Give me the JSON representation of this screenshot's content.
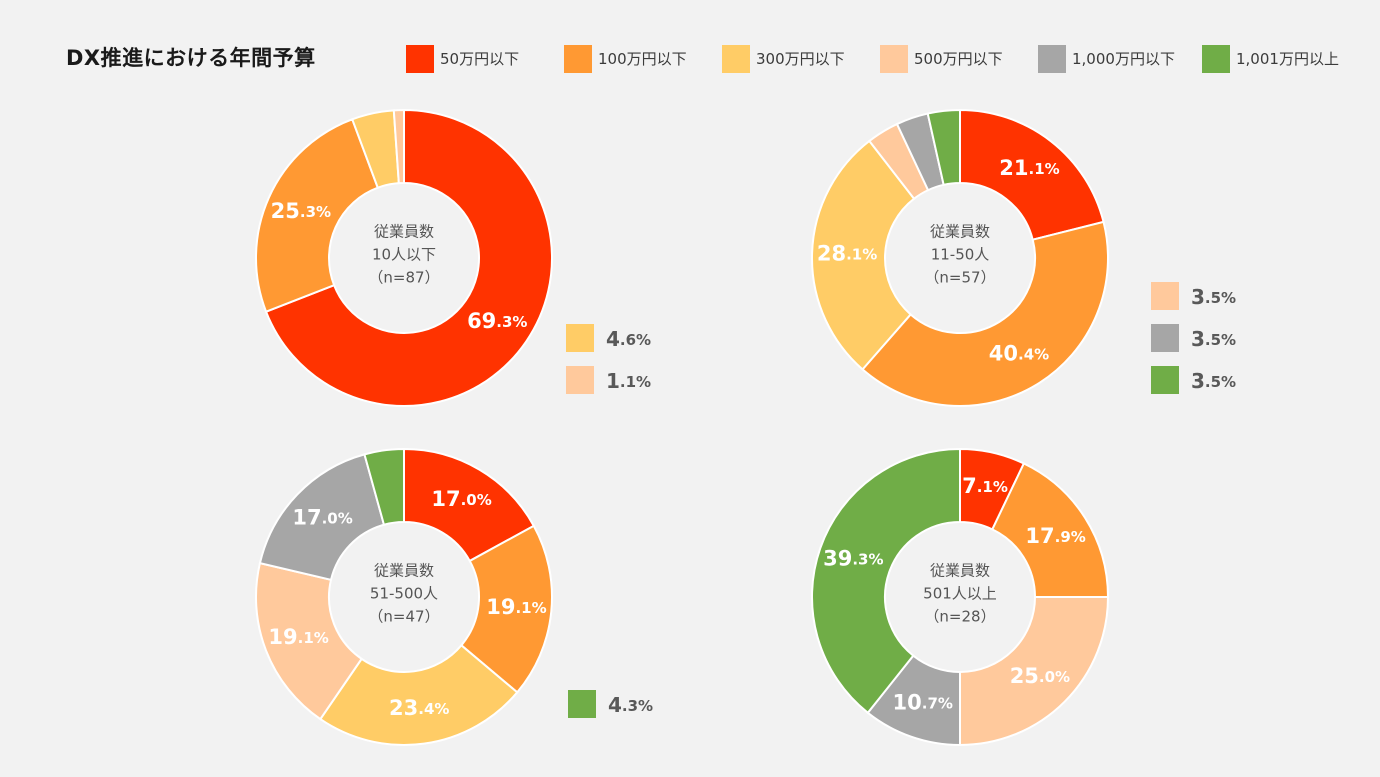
{
  "title": "DX推進における年間予算",
  "colors": {
    "50万円以下": "#ff3300",
    "100万円以下": "#ff9933",
    "300万円以下": "#ffcc66",
    "500万円以下": "#ffc99c",
    "1,000万円以下": "#a6a6a6",
    "1,001万円以上": "#70ad47"
  },
  "legend": [
    "50万円以下",
    "100万円以下",
    "300万円以下",
    "500万円以下",
    "1,000万円以下",
    "1,001万円以上"
  ],
  "chart_data": [
    {
      "type": "pie",
      "title": "DX推進における年間予算",
      "center_label": [
        "従業員数",
        "10人以下",
        "（n=87）"
      ],
      "categories": [
        "50万円以下",
        "100万円以下",
        "300万円以下",
        "500万円以下"
      ],
      "values": [
        69.3,
        25.3,
        4.6,
        1.1
      ],
      "labels": [
        "69.3%",
        "25.3%",
        "4.6%",
        "1.1%"
      ],
      "side_labels": [
        2,
        3
      ]
    },
    {
      "type": "pie",
      "title": "DX推進における年間予算",
      "center_label": [
        "従業員数",
        "11-50人",
        "（n=57）"
      ],
      "categories": [
        "50万円以下",
        "100万円以下",
        "300万円以下",
        "500万円以下",
        "1,000万円以下",
        "1,001万円以上"
      ],
      "values": [
        21.1,
        40.4,
        28.1,
        3.5,
        3.5,
        3.5
      ],
      "labels": [
        "21.1%",
        "40.4%",
        "28.1%",
        "3.5%",
        "3.5%",
        "3.5%"
      ],
      "side_labels": [
        3,
        4,
        5
      ]
    },
    {
      "type": "pie",
      "title": "DX推進における年間予算",
      "center_label": [
        "従業員数",
        "51-500人",
        "（n=47）"
      ],
      "categories": [
        "50万円以下",
        "100万円以下",
        "300万円以下",
        "500万円以下",
        "1,000万円以下",
        "1,001万円以上"
      ],
      "values": [
        17.0,
        19.1,
        23.4,
        19.1,
        17.0,
        4.3
      ],
      "labels": [
        "17.0%",
        "19.1%",
        "23.4%",
        "19.1%",
        "17.0%",
        "4.3%"
      ],
      "side_labels": [
        5
      ]
    },
    {
      "type": "pie",
      "title": "DX推進における年間予算",
      "center_label": [
        "従業員数",
        "501人以上",
        "（n=28）"
      ],
      "categories": [
        "50万円以下",
        "100万円以下",
        "500万円以下",
        "1,000万円以下",
        "1,001万円以上"
      ],
      "values": [
        7.1,
        17.9,
        25.0,
        10.7,
        39.3
      ],
      "labels": [
        "7.1%",
        "17.9%",
        "25.0%",
        "10.7%",
        "39.3%"
      ],
      "side_labels": []
    }
  ]
}
